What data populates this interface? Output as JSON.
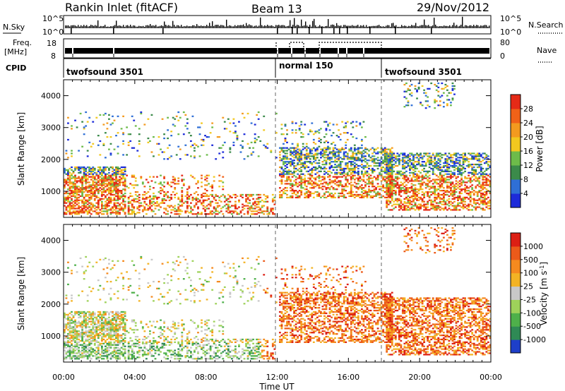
{
  "header": {
    "station": "Rankin Inlet (fitACF)",
    "beam": "Beam 13",
    "date": "29/Nov/2012"
  },
  "top_panels": {
    "nsky_label": "N.Sky",
    "nsky_ticks": [
      "10^5",
      "10^0"
    ],
    "nsearch_label": "N.Search",
    "nsearch_ticks": [
      "10^5",
      "10^0"
    ],
    "freq_label_1": "Freq.",
    "freq_label_2": "[MHz]",
    "freq_ticks": [
      "18",
      "8"
    ],
    "nave_label": "Nave",
    "nave_ticks": [
      "80",
      "0"
    ],
    "cpid_label": "CPID",
    "cpid_segments": [
      "twofsound 3501",
      "normal 150",
      "twofsound 3501"
    ]
  },
  "chart_data": [
    {
      "type": "heatmap",
      "name": "power",
      "xlabel": "",
      "ylabel": "Slant Range [km]",
      "ylim": [
        180,
        4500
      ],
      "y_ticks": [
        "1000",
        "2000",
        "3000",
        "4000"
      ],
      "xlim_hours": [
        0,
        24
      ],
      "grid": "dashed vertical lines at 12:00 and 18:00",
      "colorbar": {
        "label": "Power [dB]",
        "tick_labels": [
          "28",
          "24",
          "20",
          "16",
          "12",
          "8",
          "4"
        ],
        "colors": [
          "#1d2bd9",
          "#2f6fd6",
          "#3b8a4a",
          "#6dbb4a",
          "#f2c81f",
          "#f39a1f",
          "#f06218",
          "#e52a17"
        ]
      }
    },
    {
      "type": "heatmap",
      "name": "velocity",
      "xlabel": "Time UT",
      "ylabel": "Slant Range [km]",
      "ylim": [
        180,
        4500
      ],
      "y_ticks": [
        "1000",
        "2000",
        "3000",
        "4000"
      ],
      "x_ticks": [
        "00:00",
        "04:00",
        "08:00",
        "12:00",
        "16:00",
        "20:00",
        "00:00"
      ],
      "grid": "dashed vertical lines at 12:00 and 18:00",
      "colorbar": {
        "label": "Velocity",
        "unit": "[m s",
        "unit_exp": "-1",
        "unit_close": "]",
        "tick_labels": [
          "1000",
          "500",
          "100",
          "25",
          "-25",
          "-100",
          "-500",
          "-1000"
        ],
        "colors": [
          "#1e3fc9",
          "#2f8a55",
          "#4eb04a",
          "#9ed25a",
          "#c8c8c8",
          "#f3b324",
          "#f58a1f",
          "#ec5a1a",
          "#dc1f14"
        ]
      }
    }
  ]
}
